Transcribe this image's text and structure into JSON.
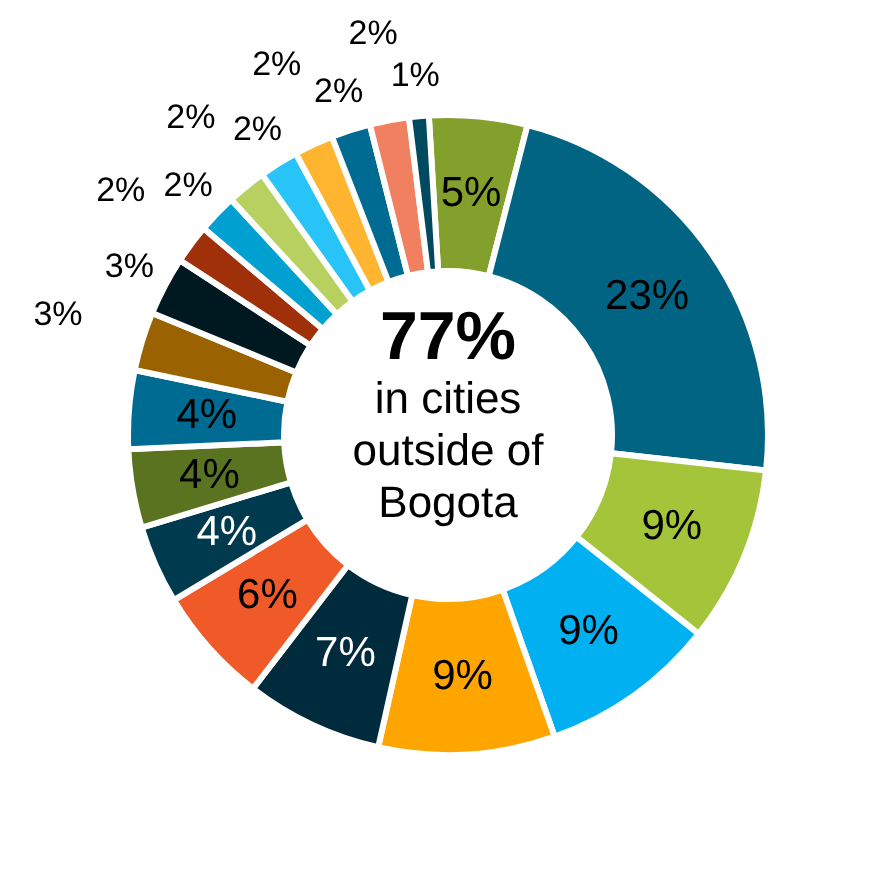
{
  "chart_data": {
    "type": "donut",
    "categories": [
      null,
      null,
      null,
      null,
      null,
      null,
      null,
      null,
      null,
      null,
      null,
      null,
      null,
      null,
      null,
      null,
      null,
      null,
      null,
      null
    ],
    "values": [
      5,
      23,
      9,
      9,
      9,
      7,
      6,
      4,
      4,
      4,
      3,
      3,
      2,
      2,
      2,
      2,
      2,
      2,
      2,
      1
    ],
    "colors": [
      "#84a02c",
      "#006482",
      "#a4c43a",
      "#00b0f0",
      "#ffa500",
      "#002b3c",
      "#f05a28",
      "#003a4e",
      "#5a7320",
      "#006b92",
      "#9a6200",
      "#001820",
      "#a0300a",
      "#00a0d0",
      "#b8d060",
      "#28c4f8",
      "#ffb530",
      "#006b92",
      "#f08060",
      "#004a60"
    ],
    "value_labels": [
      "5%",
      "23%",
      "9%",
      "9%",
      "9%",
      "7%",
      "6%",
      "4%",
      "4%",
      "4%",
      "3%",
      "3%",
      "2%",
      "2%",
      "2%",
      "2%",
      "2%",
      "2%",
      "2%",
      "1%"
    ],
    "annotations": [
      "77%",
      "in cities\noutside of\nBogota"
    ]
  }
}
